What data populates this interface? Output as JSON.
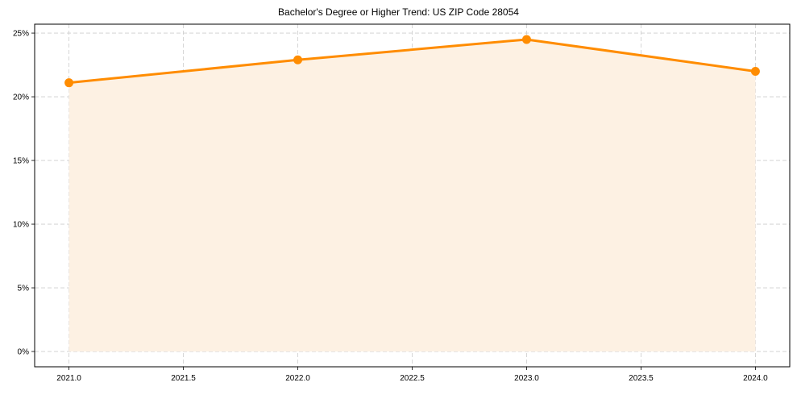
{
  "chart_data": {
    "type": "line",
    "title": "Bachelor's Degree or Higher Trend: US ZIP Code 28054",
    "xlabel": "",
    "ylabel": "",
    "x": [
      2021.0,
      2022.0,
      2023.0,
      2024.0
    ],
    "series": [
      {
        "name": "Bachelor's Degree or Higher",
        "values": [
          21.1,
          22.9,
          24.5,
          22.0
        ],
        "unit": "%",
        "color": "#ff8c00",
        "fill": true,
        "fill_color": "#fdf1e3",
        "marker": "circle"
      }
    ],
    "x_ticks": [
      "2021.0",
      "2021.5",
      "2022.0",
      "2022.5",
      "2023.0",
      "2023.5",
      "2024.0"
    ],
    "x_tick_values": [
      2021.0,
      2021.5,
      2022.0,
      2022.5,
      2023.0,
      2023.5,
      2024.0
    ],
    "y_ticks": [
      "0%",
      "5%",
      "10%",
      "15%",
      "20%",
      "25%"
    ],
    "y_tick_values": [
      0,
      5,
      10,
      15,
      20,
      25
    ],
    "xlim": [
      2020.85,
      2024.15
    ],
    "ylim": [
      -1.2,
      25.7
    ],
    "grid": true,
    "grid_style": "dashed",
    "legend": null
  }
}
